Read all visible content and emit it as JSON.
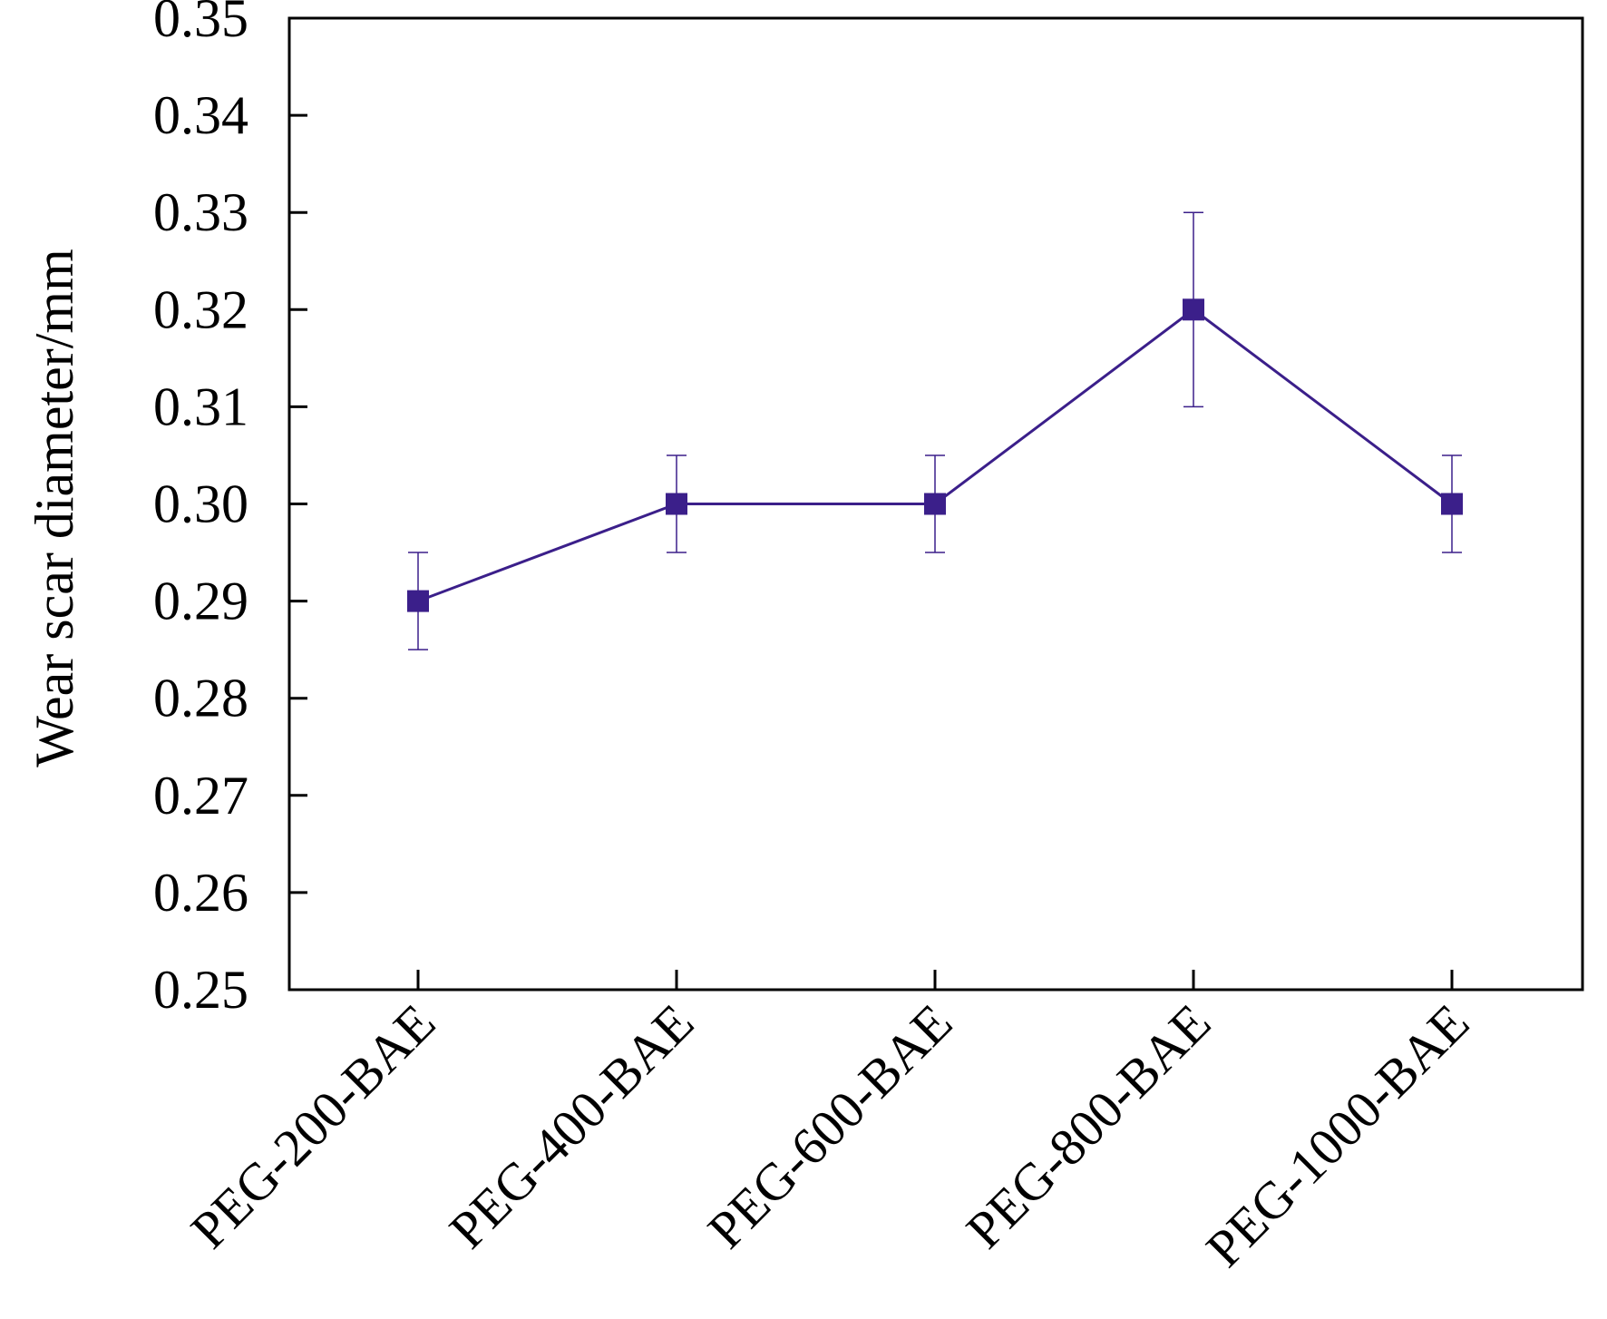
{
  "chart_data": {
    "type": "line",
    "title": "",
    "xlabel": "",
    "ylabel": "Wear scar diameter/mm",
    "categories": [
      "PEG-200-BAE",
      "PEG-400-BAE",
      "PEG-600-BAE",
      "PEG-800-BAE",
      "PEG-1000-BAE"
    ],
    "series": [
      {
        "values": [
          0.29,
          0.3,
          0.3,
          0.32,
          0.3
        ],
        "error": [
          0.005,
          0.005,
          0.005,
          0.01,
          0.005
        ],
        "color": "#3b1f8a",
        "marker": "square"
      }
    ],
    "ylim": [
      0.25,
      0.35
    ],
    "yticks": [
      "0.25",
      "0.26",
      "0.27",
      "0.28",
      "0.29",
      "0.30",
      "0.31",
      "0.32",
      "0.33",
      "0.34",
      "0.35"
    ],
    "grid": false,
    "legend": "none"
  }
}
